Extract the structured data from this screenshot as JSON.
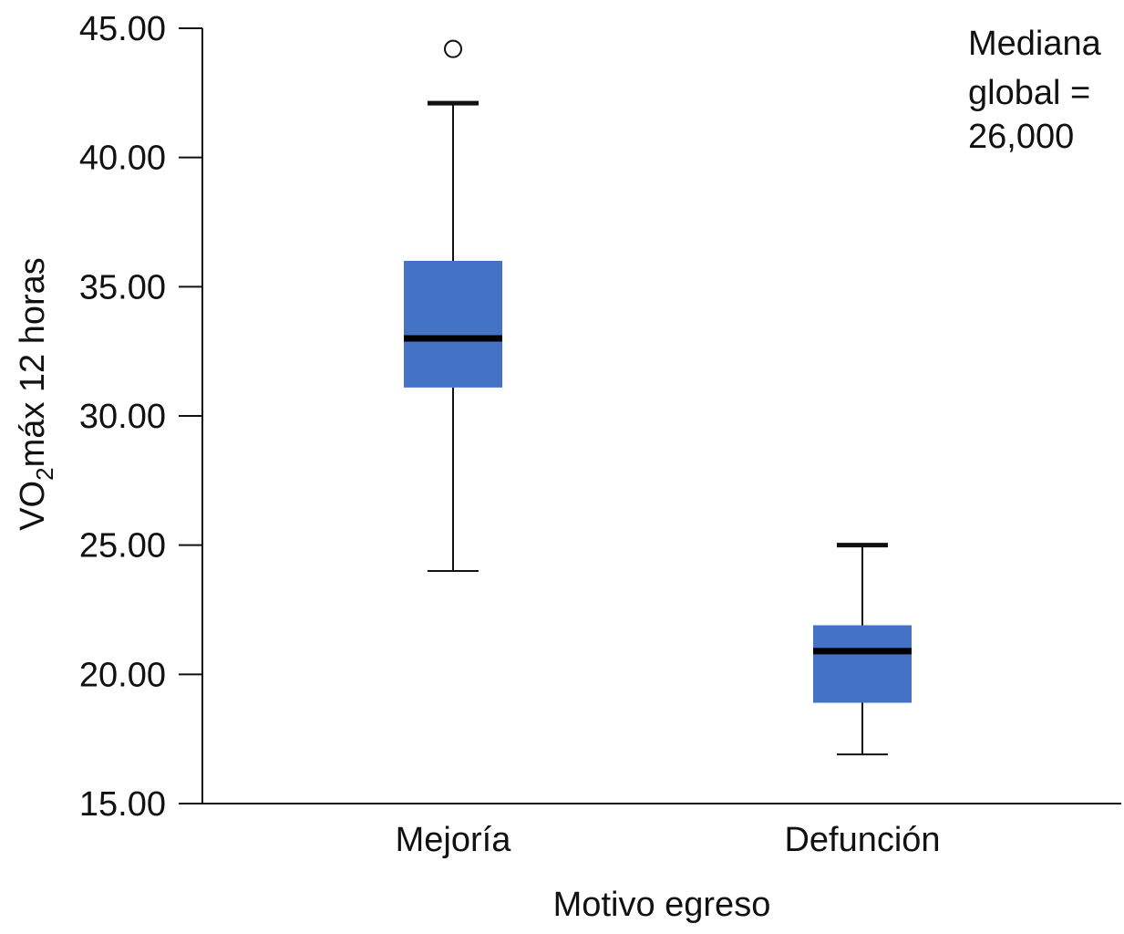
{
  "chart_data": {
    "type": "boxplot",
    "title": "",
    "xlabel": "Motivo egreso",
    "ylabel": {
      "prefix": "VO",
      "subscript": "2",
      "suffix": "máx 12 horas"
    },
    "ylim": [
      15,
      45
    ],
    "yticks": [
      "15.00",
      "20.00",
      "25.00",
      "30.00",
      "35.00",
      "40.00",
      "45.00"
    ],
    "ytick_values": [
      15,
      20,
      25,
      30,
      35,
      40,
      45
    ],
    "box_color": "#4472C4",
    "categories": [
      "Mejoría",
      "Defunción"
    ],
    "boxes": [
      {
        "category": "Mejoría",
        "whisker_low": 24.0,
        "q1": 31.1,
        "median": 33.0,
        "q3": 36.0,
        "whisker_high": 42.1,
        "outliers": [
          44.2
        ]
      },
      {
        "category": "Defunción",
        "whisker_low": 16.9,
        "q1": 18.9,
        "median": 20.9,
        "q3": 21.9,
        "whisker_high": 25.0,
        "outliers": []
      }
    ],
    "annotation": [
      "Mediana",
      "global =",
      "26,000"
    ]
  }
}
